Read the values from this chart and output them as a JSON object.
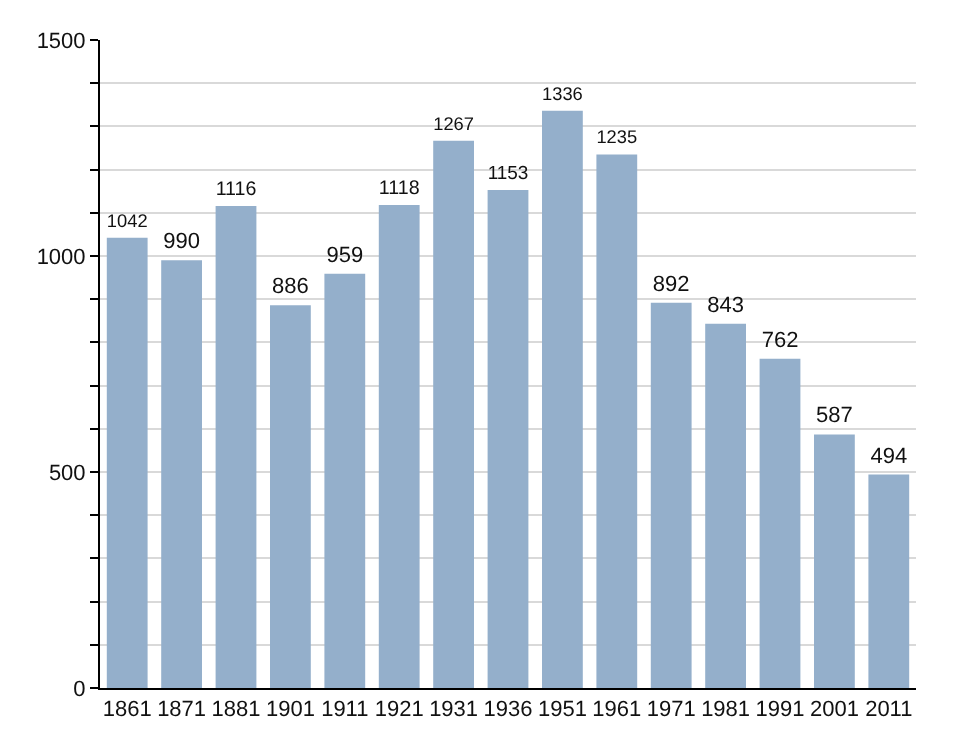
{
  "chart_data": {
    "type": "bar",
    "categories": [
      "1861",
      "1871",
      "1881",
      "1901",
      "1911",
      "1921",
      "1931",
      "1936",
      "1951",
      "1961",
      "1971",
      "1981",
      "1991",
      "2001",
      "2011"
    ],
    "values": [
      1042,
      990,
      1116,
      886,
      959,
      1118,
      1267,
      1153,
      1336,
      1235,
      892,
      843,
      762,
      587,
      494
    ],
    "color": "#94afcb",
    "ylim": [
      0,
      1500
    ],
    "yticks": [
      0,
      {
        "value": 100,
        "label": null
      },
      {
        "value": 200,
        "label": null
      },
      {
        "value": 300,
        "label": null
      },
      {
        "value": 400,
        "label": null
      },
      500,
      {
        "value": 600,
        "label": null
      },
      {
        "value": 700,
        "label": null
      },
      {
        "value": 800,
        "label": null
      },
      {
        "value": 900,
        "label": null
      },
      1000,
      {
        "value": 1100,
        "label": null
      },
      {
        "value": 1200,
        "label": null
      },
      {
        "value": 1300,
        "label": null
      },
      {
        "value": 1400,
        "label": null
      },
      1500
    ],
    "grid": "y",
    "data_labels": true
  }
}
